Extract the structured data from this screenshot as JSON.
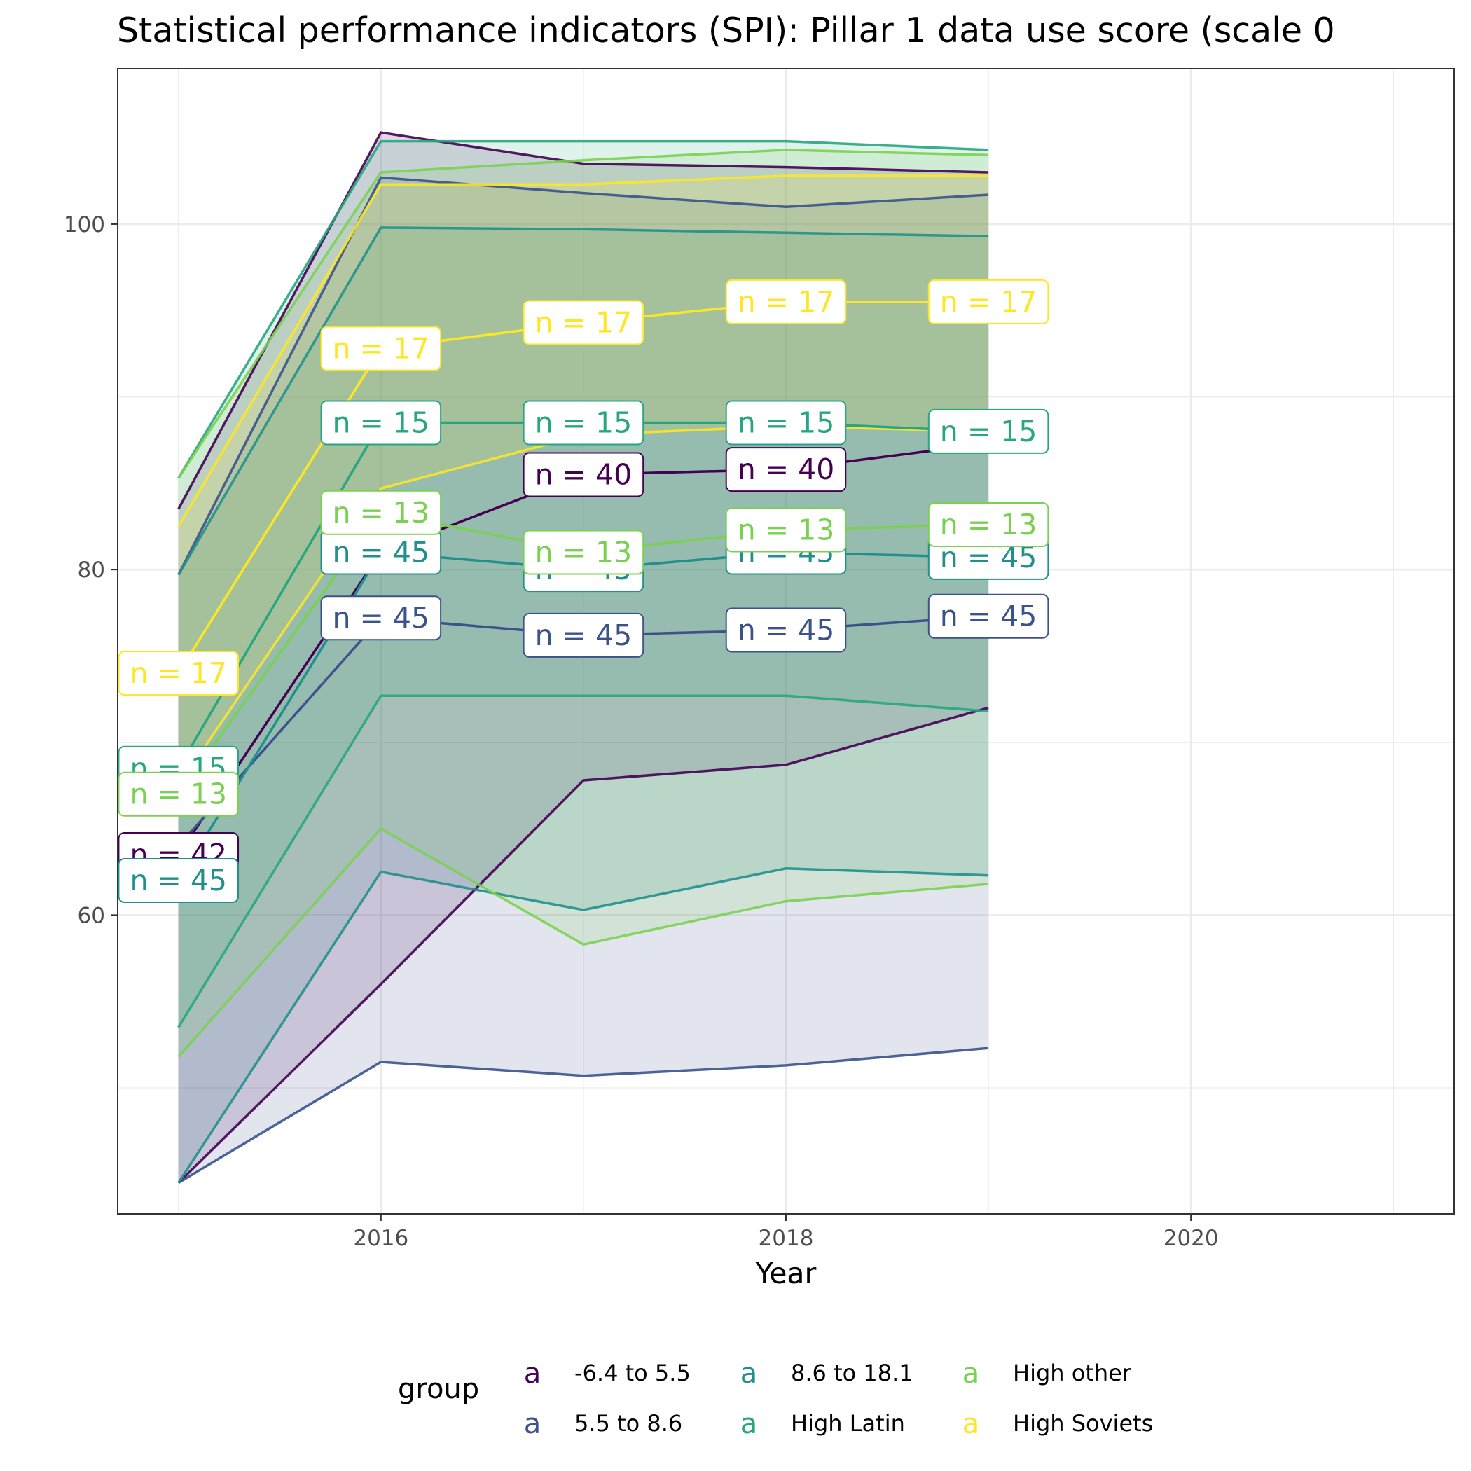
{
  "chart_data": {
    "type": "line",
    "title": "Statistical performance indicators (SPI): Pillar 1 data use score (scale 0",
    "xlabel": "Year",
    "ylabel": "",
    "xlim": [
      2014.7,
      2021.3
    ],
    "ylim": [
      42.7,
      109
    ],
    "x_ticks": [
      2016,
      2018,
      2020
    ],
    "y_ticks": [
      60,
      80,
      100
    ],
    "grid": true,
    "legend": {
      "title": "group",
      "placement": "bottom",
      "key_glyph": "a"
    },
    "x": [
      2015,
      2016,
      2017,
      2018,
      2019
    ],
    "series": [
      {
        "name": "-6.4 to 5.5",
        "color": "#440154",
        "mean": [
          63.5,
          81.0,
          85.5,
          85.8,
          87.3
        ],
        "upper": [
          83.5,
          105.3,
          103.5,
          103.3,
          103.0
        ],
        "lower": [
          44.5,
          56.0,
          67.8,
          68.7,
          72.0
        ],
        "labels": [
          "n = 42",
          "",
          "n = 40",
          "n = 40",
          ""
        ]
      },
      {
        "name": "5.5 to 8.6",
        "color": "#3b528b",
        "mean": [
          64.0,
          77.2,
          76.2,
          76.5,
          77.3
        ],
        "upper": [
          79.7,
          102.7,
          101.8,
          101.0,
          101.7
        ],
        "lower": [
          44.5,
          51.5,
          50.7,
          51.3,
          52.3
        ],
        "labels": [
          "",
          "n = 45",
          "n = 45",
          "n = 45",
          "n = 45"
        ]
      },
      {
        "name": "8.6 to 18.1",
        "color": "#21908c",
        "mean": [
          62.0,
          81.0,
          80.0,
          81.0,
          80.7
        ],
        "upper": [
          79.7,
          99.8,
          99.7,
          99.5,
          99.3
        ],
        "lower": [
          44.5,
          62.5,
          60.3,
          62.7,
          62.3
        ],
        "labels": [
          "n = 45",
          "n = 45",
          "n = 45",
          "n = 45",
          "n = 45"
        ]
      },
      {
        "name": "High Latin",
        "color": "#27a680",
        "mean": [
          68.5,
          88.5,
          88.5,
          88.5,
          88.0
        ],
        "upper": [
          85.3,
          104.8,
          104.8,
          104.8,
          104.3
        ],
        "lower": [
          53.5,
          72.7,
          72.7,
          72.7,
          71.8
        ],
        "labels": [
          "n = 15",
          "n = 15",
          "n = 15",
          "n = 15",
          "n = 15"
        ]
      },
      {
        "name": "High other",
        "color": "#7ad151",
        "mean": [
          67.0,
          83.3,
          81.0,
          82.3,
          82.6
        ],
        "upper": [
          85.3,
          103.0,
          103.7,
          104.3,
          104.0
        ],
        "lower": [
          51.8,
          65.0,
          58.3,
          60.8,
          61.8
        ],
        "labels": [
          "n = 13",
          "n = 13",
          "n = 13",
          "n = 13",
          "n = 13"
        ]
      },
      {
        "name": "High Soviets",
        "color": "#fde725",
        "mean": [
          74.0,
          92.8,
          94.3,
          95.5,
          95.5
        ],
        "upper": [
          82.5,
          102.3,
          102.3,
          102.8,
          102.8
        ],
        "lower": [
          67.5,
          84.7,
          87.8,
          88.3,
          88.0
        ],
        "labels": [
          "n = 17",
          "n = 17",
          "n = 17",
          "n = 17",
          "n = 17"
        ]
      }
    ]
  }
}
